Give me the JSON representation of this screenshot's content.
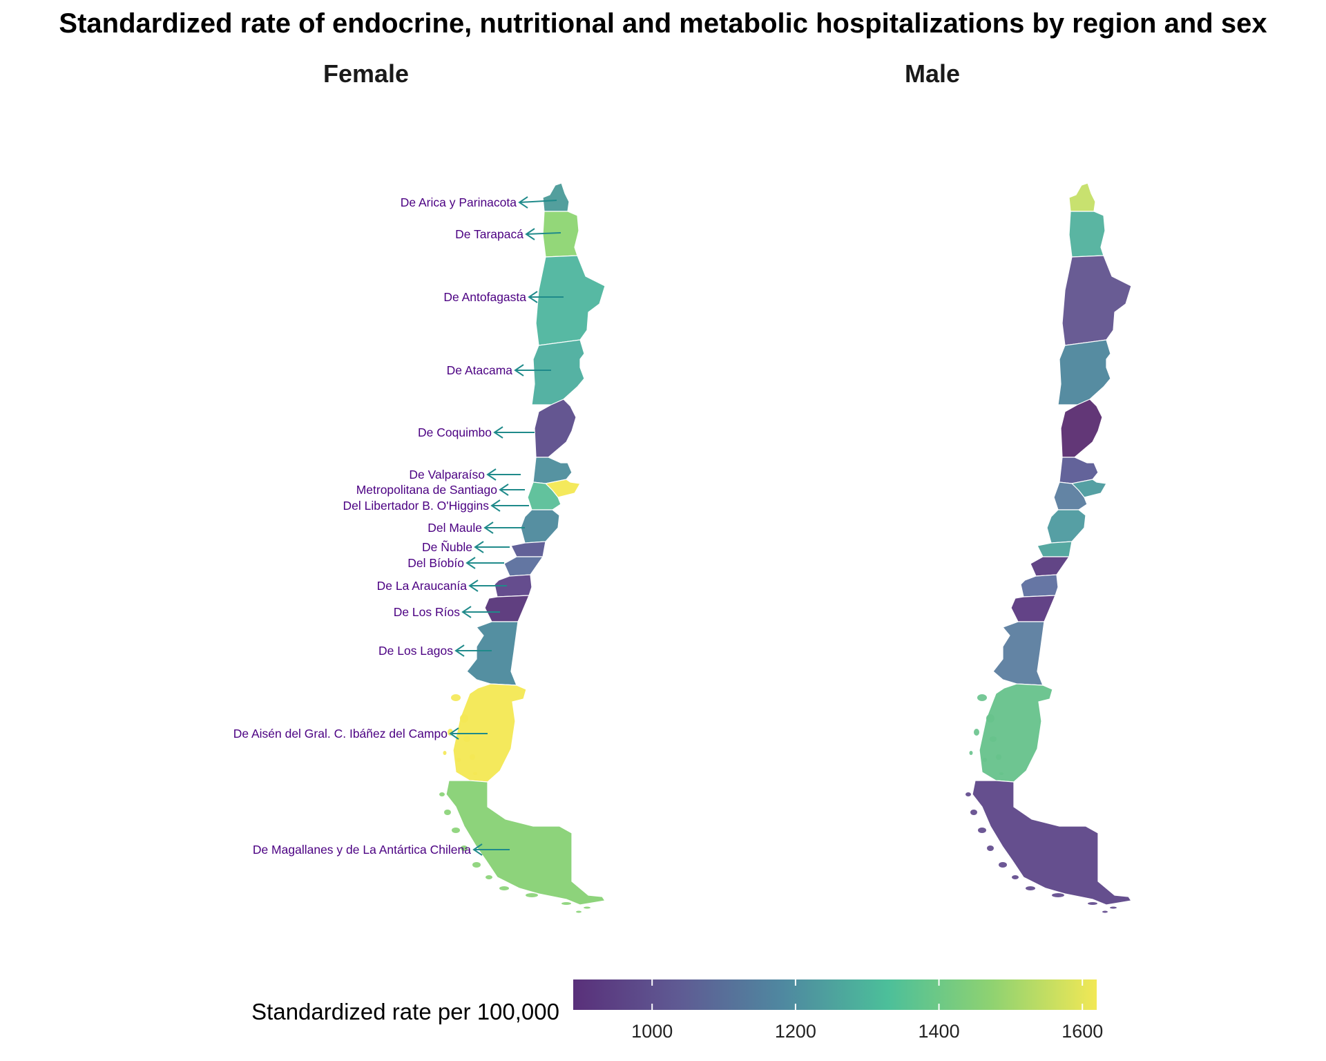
{
  "title": "Standardized rate of endocrine, nutritional and metabolic hospitalizations by region and sex",
  "facets": [
    {
      "name": "Female",
      "regions": [
        {
          "label": "De Arica y Parinacota",
          "color": "#4a9a98"
        },
        {
          "label": "De Tarapacá",
          "color": "#8ed572"
        },
        {
          "label": "De Antofagasta",
          "color": "#4fb69f"
        },
        {
          "label": "De Atacama",
          "color": "#4cae9f"
        },
        {
          "label": "De Coquimbo",
          "color": "#5c4d8c"
        },
        {
          "label": "De Valparaíso",
          "color": "#4e8e9d"
        },
        {
          "label": "Metropolitana de Santiago",
          "color": "#f4e854"
        },
        {
          "label": "Del Libertador B. O'Higgins",
          "color": "#5abf98"
        },
        {
          "label": "Del Maule",
          "color": "#4e8a9c"
        },
        {
          "label": "De Ñuble",
          "color": "#5a5993"
        },
        {
          "label": "Del Bíobío",
          "color": "#5b6f9e"
        },
        {
          "label": "De La Araucanía",
          "color": "#5d4488"
        },
        {
          "label": "De Los Ríos",
          "color": "#58357a"
        },
        {
          "label": "De Los Lagos",
          "color": "#4b8a9c"
        },
        {
          "label": "De Aisén del Gral. C. Ibáñez del Campo",
          "color": "#f4e854"
        },
        {
          "label": "De Magallanes y de La Antártica Chilena",
          "color": "#87d174"
        }
      ]
    },
    {
      "name": "Male",
      "regions": [
        {
          "color": "#c6e068"
        },
        {
          "color": "#52b29e"
        },
        {
          "color": "#62548f"
        },
        {
          "color": "#4e869d"
        },
        {
          "color": "#5a2d70"
        },
        {
          "color": "#5b5b95"
        },
        {
          "color": "#4c9b9f"
        },
        {
          "color": "#5b7ea0"
        },
        {
          "color": "#4d9aa0"
        },
        {
          "color": "#4ea49d"
        },
        {
          "color": "#5a3c80"
        },
        {
          "color": "#5e6fa0"
        },
        {
          "color": "#5b3981"
        },
        {
          "color": "#5b7ea0"
        },
        {
          "color": "#67c28c"
        },
        {
          "color": "#5d4689"
        }
      ]
    }
  ],
  "legend": {
    "title": "Standardized rate per 100,000",
    "min": 890,
    "max": 1620,
    "ticks": [
      1000,
      1200,
      1400,
      1600
    ],
    "colors": [
      "#59307a",
      "#5f5a93",
      "#4f88a0",
      "#4cbf9a",
      "#8fd271",
      "#f2e855"
    ]
  },
  "leader_color": "#1f8a8a"
}
